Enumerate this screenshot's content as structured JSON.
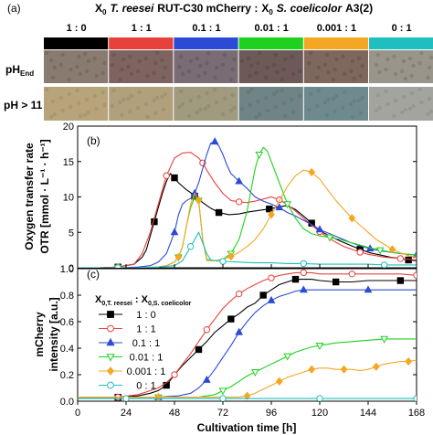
{
  "figure": {
    "panel_a_label": "(a)",
    "panel_b_label": "(b)",
    "panel_c_label": "(c)",
    "header": {
      "x0": "X",
      "x0_sub": "0",
      "species1": "T. reesei",
      "strain1": "RUT-C30 mCherry :",
      "x0b": "X",
      "x0b_sub": "0",
      "species2": "S. coelicolor",
      "strain2": "A3(2)"
    },
    "ratio_labels": [
      "1 : 0",
      "1 : 1",
      "0.1 : 1",
      "0.01 : 1",
      "0.001 : 1",
      "0 : 1"
    ],
    "ratio_colors": [
      "#000000",
      "#e8413c",
      "#2b4bd6",
      "#1fd11f",
      "#f5a623",
      "#1fbfbf"
    ],
    "row_labels": {
      "ph_end": "pH",
      "ph_end_sub": "End",
      "ph_gt11": "pH > 11"
    },
    "photo_colors_ph_end": [
      "#8a7b70",
      "#7e6460",
      "#7a6c74",
      "#6d5a58",
      "#7e675c",
      "#9a958a"
    ],
    "photo_colors_ph11": [
      "#b8a47a",
      "#b0a07c",
      "#a09a7e",
      "#6f8486",
      "#6f8a8e",
      "#a4a49e"
    ],
    "x_axis_label": "Cultivation time  [h]",
    "x_ticks": [
      "0",
      "24",
      "48",
      "72",
      "96",
      "120",
      "144",
      "168"
    ]
  },
  "chart_data": [
    {
      "type": "line",
      "panel": "(b)",
      "ylabel_line1": "Oxygen transfer rate",
      "ylabel_line2": "OTR  [mmol · L⁻¹ · h⁻¹]",
      "xlim": [
        0,
        168
      ],
      "ylim": [
        0,
        20
      ],
      "y_ticks": [
        "0",
        "5",
        "10",
        "15",
        "20"
      ],
      "series": [
        {
          "name": "1 : 0",
          "color": "#000000",
          "marker": "square-filled",
          "x": [
            0,
            10,
            20,
            28,
            32,
            34,
            36,
            38,
            40,
            42,
            44,
            46,
            48,
            50,
            52,
            54,
            56,
            58,
            60,
            62,
            64,
            66,
            70,
            75,
            80,
            85,
            90,
            95,
            100,
            104,
            108,
            112,
            116,
            120,
            125,
            130,
            135,
            140,
            145,
            150,
            155,
            160,
            164,
            168
          ],
          "y": [
            0,
            0,
            0.1,
            0.5,
            1.5,
            2.5,
            4.5,
            6.5,
            8.5,
            10.5,
            12.2,
            13.3,
            12.7,
            12,
            11.5,
            11,
            10.6,
            10.1,
            9.7,
            9.2,
            8.8,
            8.4,
            7.8,
            7.5,
            7.6,
            7.9,
            8.1,
            8.3,
            8.6,
            8.8,
            8.2,
            7.3,
            6.3,
            5.2,
            4.5,
            3.8,
            3.2,
            2.6,
            2.1,
            1.8,
            1.5,
            1.3,
            1.1,
            1.0
          ]
        },
        {
          "name": "1 : 1",
          "color": "#e8413c",
          "marker": "circle-open",
          "x": [
            0,
            10,
            20,
            28,
            32,
            36,
            40,
            44,
            48,
            52,
            56,
            60,
            62,
            64,
            68,
            72,
            76,
            80,
            84,
            88,
            92,
            96,
            100,
            104,
            108,
            112,
            116,
            120,
            124,
            128,
            132,
            136,
            140,
            144,
            148,
            152,
            156,
            160,
            164,
            168
          ],
          "y": [
            0,
            0,
            0.1,
            0.5,
            2,
            5,
            9,
            13,
            15.5,
            16.2,
            16.3,
            15.5,
            14.8,
            13.8,
            12,
            10.5,
            9.5,
            9.3,
            9.2,
            9.4,
            9.7,
            10,
            9.6,
            8.9,
            8,
            7,
            6,
            5.1,
            4.3,
            3.6,
            3,
            2.6,
            2.2,
            1.9,
            1.7,
            1.5,
            1.4,
            1.3,
            1.2,
            1.1
          ]
        },
        {
          "name": "0.1 : 1",
          "color": "#2b4bd6",
          "marker": "triangle-up-filled",
          "x": [
            0,
            10,
            20,
            30,
            36,
            40,
            44,
            48,
            50,
            52,
            54,
            56,
            58,
            60,
            62,
            64,
            66,
            68,
            70,
            72,
            74,
            76,
            80,
            84,
            88,
            92,
            96,
            100,
            104,
            108,
            112,
            116,
            120,
            125,
            130,
            135,
            140,
            145,
            150,
            155,
            160,
            164,
            168
          ],
          "y": [
            0,
            0,
            0,
            0.1,
            0.3,
            0.8,
            2,
            5,
            7.5,
            9,
            9.5,
            9.8,
            10.5,
            12,
            14,
            16,
            17.6,
            17.8,
            17.2,
            16,
            14.5,
            13.3,
            12.2,
            11.2,
            10,
            9.4,
            9,
            8.5,
            7.8,
            7.3,
            6.7,
            6.1,
            5.4,
            4.8,
            4.2,
            3.6,
            3.1,
            2.7,
            2.4,
            2.2,
            2.0,
            1.9,
            1.8
          ]
        },
        {
          "name": "0.01 : 1",
          "color": "#1fd11f",
          "marker": "triangle-down-open",
          "x": [
            0,
            10,
            20,
            30,
            40,
            44,
            48,
            50,
            52,
            54,
            56,
            58,
            60,
            62,
            64,
            68,
            72,
            76,
            80,
            84,
            86,
            88,
            90,
            92,
            94,
            96,
            100,
            104,
            108,
            112,
            116,
            120,
            125,
            130,
            135,
            140,
            145,
            150,
            155,
            160,
            164,
            168
          ],
          "y": [
            0,
            0,
            0,
            0,
            0.1,
            0.3,
            0.8,
            1.5,
            3,
            6,
            8.5,
            10,
            9.5,
            4,
            1.2,
            1,
            1.2,
            2,
            4,
            8,
            11,
            14,
            16,
            17,
            16.5,
            15,
            12,
            9,
            7,
            5.5,
            4.8,
            4.5,
            4.3,
            4,
            3.6,
            3.2,
            2.8,
            2.5,
            2.2,
            2,
            1.9,
            1.8
          ]
        },
        {
          "name": "0.001 : 1",
          "color": "#f5a623",
          "marker": "diamond-filled",
          "x": [
            0,
            10,
            20,
            30,
            40,
            44,
            48,
            50,
            52,
            54,
            56,
            58,
            60,
            62,
            64,
            68,
            72,
            76,
            80,
            84,
            88,
            92,
            96,
            100,
            104,
            108,
            112,
            116,
            120,
            124,
            128,
            132,
            136,
            140,
            144,
            148,
            152,
            156,
            160,
            164,
            168
          ],
          "y": [
            0,
            0,
            0,
            0,
            0.1,
            0.3,
            0.8,
            1.5,
            3,
            6,
            9,
            10.5,
            9.5,
            4,
            1,
            1,
            1.2,
            1.6,
            2.2,
            3,
            4,
            5.5,
            7.5,
            9.5,
            11.5,
            13,
            13.8,
            13.5,
            12.5,
            11,
            9.5,
            8.2,
            7,
            6,
            5,
            4,
            3.3,
            2.6,
            2.1,
            1.7,
            1.5
          ]
        },
        {
          "name": "0 : 1",
          "color": "#1fbfbf",
          "marker": "circle-open",
          "x": [
            0,
            10,
            20,
            30,
            40,
            48,
            52,
            56,
            60,
            64,
            66,
            68,
            72,
            80,
            88,
            96,
            104,
            112,
            120,
            128,
            136,
            144,
            152,
            160,
            168
          ],
          "y": [
            0,
            0,
            0,
            0,
            0.1,
            0.3,
            1,
            3,
            5,
            2,
            1.1,
            1,
            0.9,
            0.8,
            0.7,
            0.7,
            0.6,
            0.6,
            0.5,
            0.5,
            0.5,
            0.5,
            0.4,
            0.4,
            0.4
          ]
        }
      ]
    },
    {
      "type": "line",
      "panel": "(c)",
      "ylabel_line1": "mCherry",
      "ylabel_line2": "intensity  [a.u.]",
      "xlim": [
        0,
        168
      ],
      "ylim": [
        0,
        1.0
      ],
      "y_ticks": [
        "0.0",
        "0.2",
        "0.4",
        "0.6",
        "0.8",
        "1.0"
      ],
      "legend_title_a": "X",
      "legend_title_a_sub": "0,T. reesei",
      "legend_title_sep": " : X",
      "legend_title_b_sub": "0,S. coelicolor",
      "series": [
        {
          "name": "1 : 0",
          "color": "#000000",
          "marker": "square-filled",
          "x": [
            0,
            10,
            20,
            30,
            36,
            40,
            44,
            48,
            52,
            56,
            60,
            64,
            68,
            72,
            76,
            80,
            84,
            88,
            92,
            96,
            100,
            104,
            108,
            112,
            116,
            120,
            128,
            136,
            144,
            152,
            160,
            168
          ],
          "y": [
            0.03,
            0.03,
            0.03,
            0.04,
            0.06,
            0.08,
            0.12,
            0.2,
            0.27,
            0.33,
            0.39,
            0.45,
            0.52,
            0.57,
            0.62,
            0.66,
            0.71,
            0.74,
            0.8,
            0.84,
            0.88,
            0.9,
            0.92,
            0.92,
            0.92,
            0.91,
            0.9,
            0.9,
            0.91,
            0.91,
            0.91,
            0.91
          ]
        },
        {
          "name": "1 : 1",
          "color": "#e8413c",
          "marker": "circle-open",
          "x": [
            0,
            10,
            20,
            30,
            40,
            44,
            48,
            52,
            56,
            60,
            64,
            68,
            72,
            76,
            80,
            84,
            88,
            92,
            96,
            100,
            104,
            108,
            112,
            116,
            120,
            128,
            136,
            144,
            152,
            160,
            168
          ],
          "y": [
            0.03,
            0.03,
            0.03,
            0.05,
            0.1,
            0.14,
            0.2,
            0.28,
            0.36,
            0.45,
            0.54,
            0.62,
            0.7,
            0.76,
            0.81,
            0.85,
            0.88,
            0.91,
            0.93,
            0.95,
            0.96,
            0.97,
            0.97,
            0.97,
            0.96,
            0.96,
            0.96,
            0.96,
            0.96,
            0.96,
            0.95
          ]
        },
        {
          "name": "0.1 : 1",
          "color": "#2b4bd6",
          "marker": "triangle-up-filled",
          "x": [
            0,
            20,
            40,
            50,
            56,
            60,
            64,
            68,
            72,
            76,
            80,
            84,
            88,
            92,
            96,
            100,
            104,
            108,
            112,
            120,
            128,
            136,
            144,
            152,
            160,
            168
          ],
          "y": [
            0.03,
            0.03,
            0.03,
            0.04,
            0.06,
            0.1,
            0.16,
            0.24,
            0.33,
            0.42,
            0.52,
            0.6,
            0.67,
            0.72,
            0.76,
            0.79,
            0.81,
            0.83,
            0.84,
            0.84,
            0.84,
            0.84,
            0.84,
            0.84,
            0.84,
            0.84
          ]
        },
        {
          "name": "0.01 : 1",
          "color": "#1fd11f",
          "marker": "triangle-down-open",
          "x": [
            0,
            20,
            40,
            60,
            64,
            68,
            72,
            76,
            80,
            84,
            88,
            92,
            96,
            100,
            104,
            108,
            112,
            116,
            120,
            128,
            136,
            144,
            152,
            160,
            168
          ],
          "y": [
            0.03,
            0.03,
            0.03,
            0.03,
            0.04,
            0.05,
            0.08,
            0.11,
            0.15,
            0.19,
            0.22,
            0.25,
            0.28,
            0.31,
            0.34,
            0.37,
            0.39,
            0.41,
            0.42,
            0.44,
            0.45,
            0.46,
            0.47,
            0.47,
            0.47
          ]
        },
        {
          "name": "0.001 : 1",
          "color": "#f5a623",
          "marker": "diamond-filled",
          "x": [
            0,
            20,
            40,
            60,
            72,
            80,
            84,
            88,
            92,
            96,
            100,
            104,
            108,
            112,
            116,
            120,
            124,
            128,
            132,
            136,
            140,
            144,
            148,
            152,
            156,
            160,
            164,
            168
          ],
          "y": [
            0.03,
            0.03,
            0.03,
            0.03,
            0.03,
            0.03,
            0.04,
            0.06,
            0.09,
            0.12,
            0.15,
            0.18,
            0.2,
            0.22,
            0.24,
            0.25,
            0.25,
            0.24,
            0.24,
            0.24,
            0.23,
            0.24,
            0.26,
            0.28,
            0.29,
            0.3,
            0.3,
            0.31
          ]
        },
        {
          "name": "0 : 1",
          "color": "#1fbfbf",
          "marker": "circle-open",
          "x": [
            0,
            12,
            24,
            36,
            48,
            60,
            72,
            84,
            96,
            108,
            120,
            132,
            144,
            156,
            168
          ],
          "y": [
            0.02,
            0.02,
            0.02,
            0.02,
            0.02,
            0.02,
            0.02,
            0.02,
            0.02,
            0.02,
            0.02,
            0.02,
            0.02,
            0.02,
            0.02
          ]
        }
      ]
    }
  ]
}
